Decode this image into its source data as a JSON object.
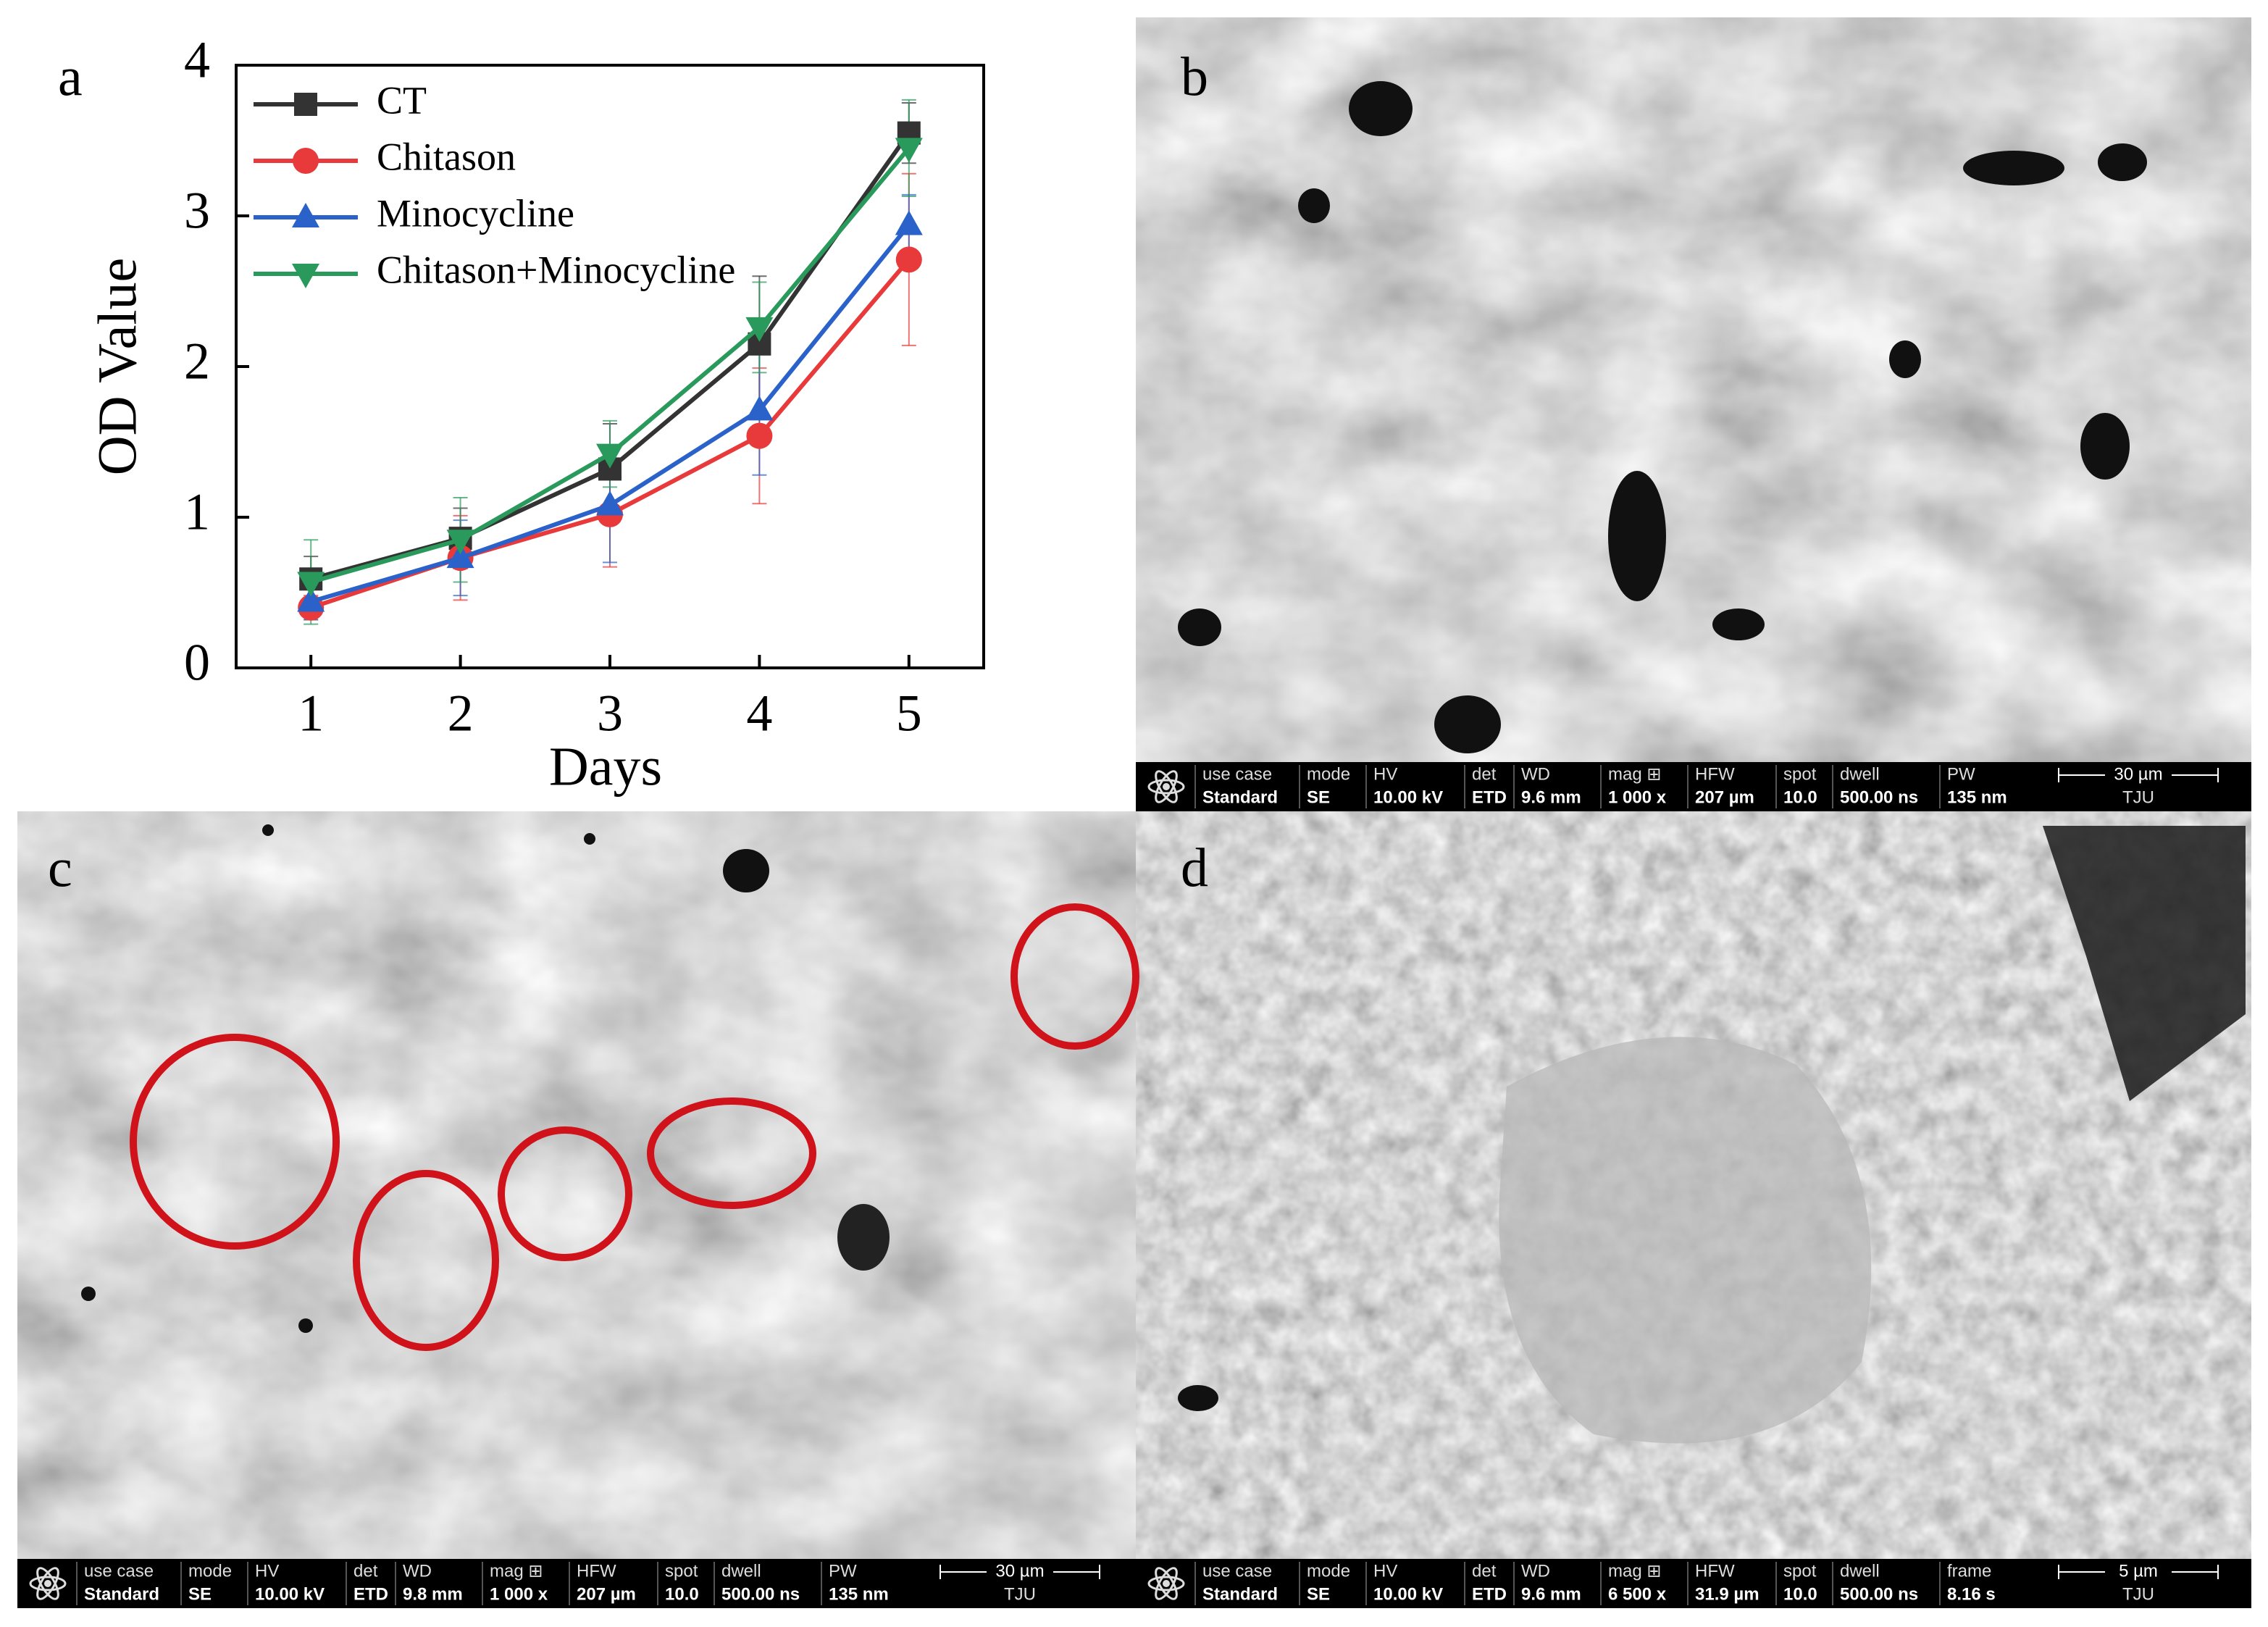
{
  "chart_data": {
    "type": "line",
    "x": [
      1,
      2,
      3,
      4,
      5
    ],
    "xlim": [
      0.5,
      5.5
    ],
    "xticks": [
      1,
      2,
      3,
      4,
      5
    ],
    "ylim": [
      0,
      4
    ],
    "yticks": [
      0,
      1,
      2,
      3,
      4
    ],
    "xlabel": "Days",
    "ylabel": "OD Value",
    "grid": false,
    "legend": "upper left",
    "series": [
      {
        "name": "CT",
        "color": "#333333",
        "marker": "square",
        "values": [
          0.59,
          0.86,
          1.32,
          2.15,
          3.55
        ],
        "errors": [
          0.15,
          0.2,
          0.3,
          0.45,
          0.2
        ]
      },
      {
        "name": "Chitason",
        "color": "#e8393b",
        "marker": "circle",
        "values": [
          0.4,
          0.73,
          1.02,
          1.54,
          2.71
        ],
        "errors": [
          0.08,
          0.28,
          0.35,
          0.45,
          0.57
        ]
      },
      {
        "name": "Minocycline",
        "color": "#2a62c9",
        "marker": "triangle-up",
        "values": [
          0.44,
          0.73,
          1.08,
          1.71,
          2.94
        ],
        "errors": [
          0.12,
          0.25,
          0.38,
          0.43,
          0.2
        ]
      },
      {
        "name": "Chitason+Minocycline",
        "color": "#2a9a5c",
        "marker": "triangle-down",
        "values": [
          0.57,
          0.85,
          1.42,
          2.26,
          3.45
        ],
        "errors": [
          0.28,
          0.28,
          0.22,
          0.3,
          0.32
        ]
      }
    ]
  },
  "panels": [
    {
      "label": "a"
    },
    {
      "label": "b",
      "info": {
        "fields": [
          {
            "name": "use case",
            "value": "Standard"
          },
          {
            "name": "mode",
            "value": "SE"
          },
          {
            "name": "HV",
            "value": "10.00 kV"
          },
          {
            "name": "det",
            "value": "ETD"
          },
          {
            "name": "WD",
            "value": "9.6 mm"
          },
          {
            "name": "mag ⊞",
            "value": "1 000 x"
          },
          {
            "name": "HFW",
            "value": "207 µm"
          },
          {
            "name": "spot",
            "value": "10.0"
          },
          {
            "name": "dwell",
            "value": "500.00 ns"
          },
          {
            "name": "PW",
            "value": "135 nm"
          }
        ],
        "scale": "30 µm",
        "tag": "TJU"
      }
    },
    {
      "label": "c",
      "info": {
        "fields": [
          {
            "name": "use case",
            "value": "Standard"
          },
          {
            "name": "mode",
            "value": "SE"
          },
          {
            "name": "HV",
            "value": "10.00 kV"
          },
          {
            "name": "det",
            "value": "ETD"
          },
          {
            "name": "WD",
            "value": "9.8 mm"
          },
          {
            "name": "mag ⊞",
            "value": "1 000 x"
          },
          {
            "name": "HFW",
            "value": "207 µm"
          },
          {
            "name": "spot",
            "value": "10.0"
          },
          {
            "name": "dwell",
            "value": "500.00 ns"
          },
          {
            "name": "PW",
            "value": "135 nm"
          }
        ],
        "scale": "30 µm",
        "tag": "TJU"
      }
    },
    {
      "label": "d",
      "info": {
        "fields": [
          {
            "name": "use case",
            "value": "Standard"
          },
          {
            "name": "mode",
            "value": "SE"
          },
          {
            "name": "HV",
            "value": "10.00 kV"
          },
          {
            "name": "det",
            "value": "ETD"
          },
          {
            "name": "WD",
            "value": "9.6 mm"
          },
          {
            "name": "mag ⊞",
            "value": "6 500 x"
          },
          {
            "name": "HFW",
            "value": "31.9 µm"
          },
          {
            "name": "spot",
            "value": "10.0"
          },
          {
            "name": "dwell",
            "value": "500.00 ns"
          },
          {
            "name": "frame",
            "value": "8.16 s"
          }
        ],
        "scale": "5 µm",
        "tag": "TJU"
      }
    }
  ]
}
